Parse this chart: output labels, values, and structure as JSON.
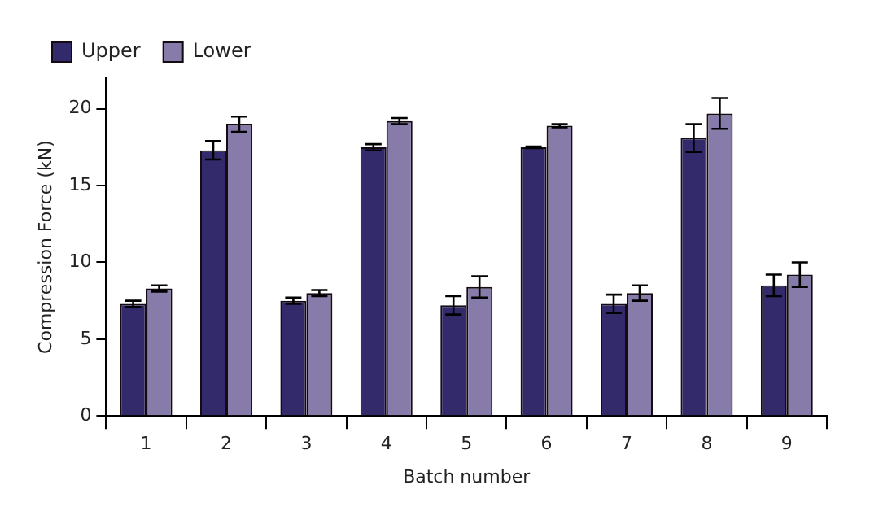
{
  "chart_data": {
    "type": "bar",
    "xlabel": "Batch number",
    "ylabel": "Compression Force (kN)",
    "categories": [
      "1",
      "2",
      "3",
      "4",
      "5",
      "6",
      "7",
      "8",
      "9"
    ],
    "series": [
      {
        "name": "Upper",
        "color": "#322a6b",
        "values": [
          7.3,
          17.3,
          7.5,
          17.5,
          7.2,
          17.5,
          7.3,
          18.1,
          8.5
        ],
        "errors": [
          0.2,
          0.6,
          0.2,
          0.2,
          0.6,
          0.05,
          0.6,
          0.9,
          0.7
        ]
      },
      {
        "name": "Lower",
        "color": "#867ba9",
        "values": [
          8.3,
          19.0,
          8.0,
          19.2,
          8.4,
          18.9,
          8.0,
          19.7,
          9.2
        ],
        "errors": [
          0.2,
          0.5,
          0.2,
          0.2,
          0.7,
          0.1,
          0.5,
          1.0,
          0.8
        ]
      }
    ],
    "ylim": [
      0,
      22
    ],
    "yticks": [
      0,
      5,
      10,
      15,
      20
    ],
    "grid": false,
    "legend": "top left"
  }
}
